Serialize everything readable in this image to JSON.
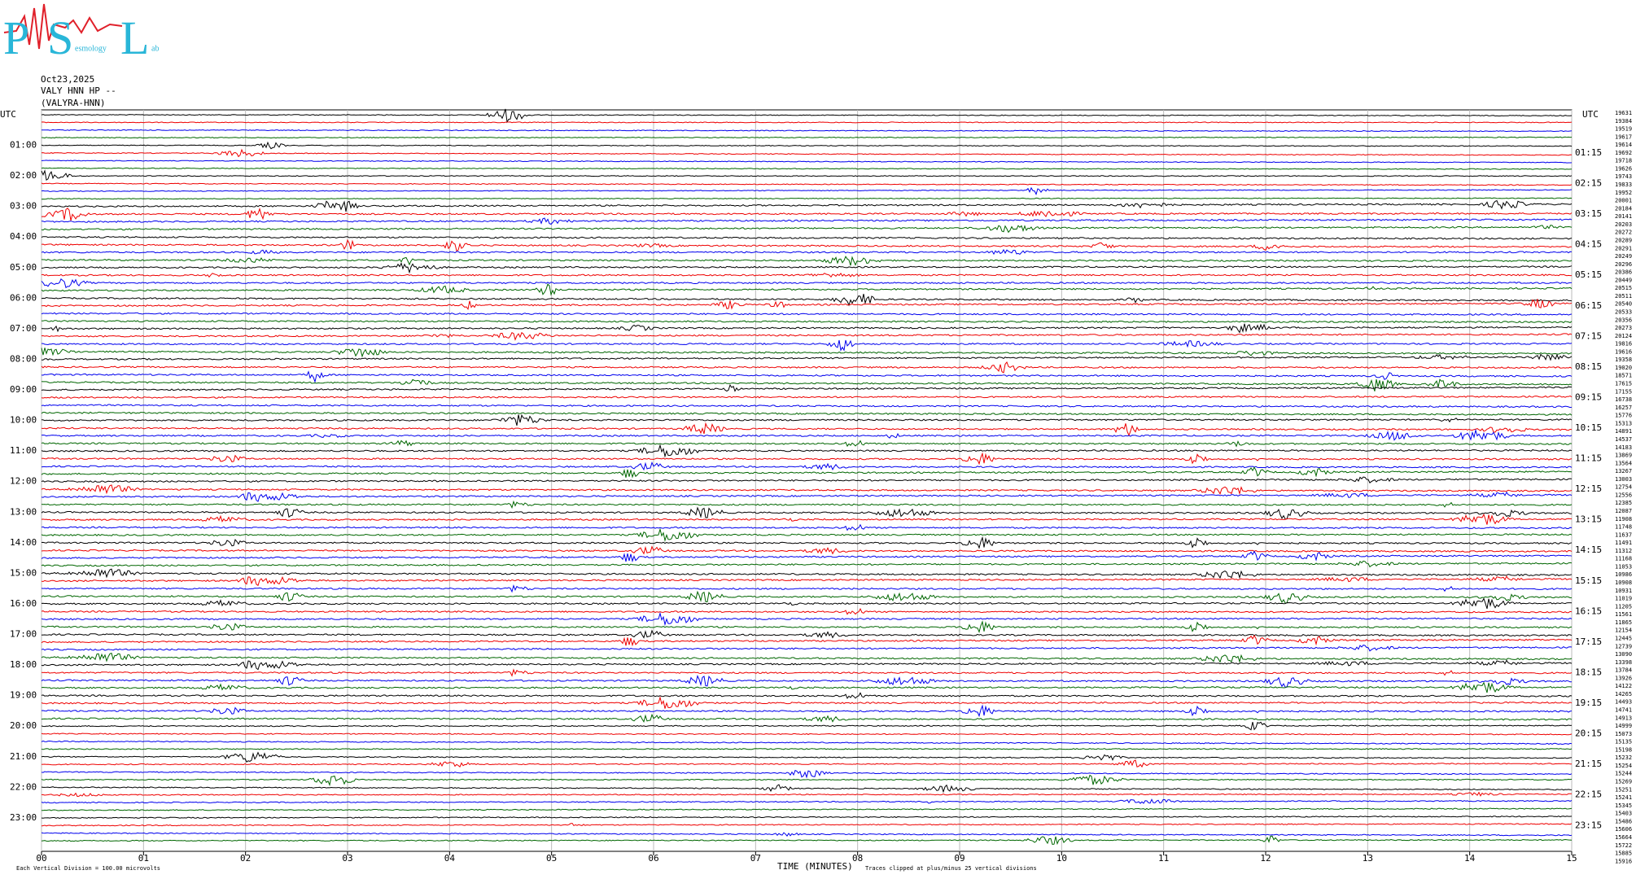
{
  "header": {
    "logo": [
      "P",
      "S",
      "L"
    ],
    "logo_fragments": [
      "esmology",
      "ab"
    ],
    "date": "Oct23,2025",
    "station": "VALY HNN HP --",
    "location": "(VALYRA-HNN)"
  },
  "left_axis": {
    "title": "UTC",
    "labels": [
      "01:00",
      "02:00",
      "03:00",
      "04:00",
      "05:00",
      "06:00",
      "07:00",
      "08:00",
      "09:00",
      "10:00",
      "11:00",
      "12:00",
      "13:00",
      "14:00",
      "15:00",
      "16:00",
      "17:00",
      "18:00",
      "19:00",
      "20:00",
      "21:00",
      "22:00",
      "23:00"
    ]
  },
  "right_axis": {
    "title": "UTC",
    "labels": [
      "01:15",
      "02:15",
      "03:15",
      "04:15",
      "05:15",
      "06:15",
      "07:15",
      "08:15",
      "09:15",
      "10:15",
      "11:15",
      "12:15",
      "13:15",
      "14:15",
      "15:15",
      "16:15",
      "17:15",
      "18:15",
      "19:15",
      "20:15",
      "21:15",
      "22:15",
      "23:15"
    ]
  },
  "trace_counts": [
    19631,
    19384,
    19519,
    19617,
    19614,
    19692,
    19718,
    19626,
    19743,
    19833,
    19952,
    20001,
    20184,
    20141,
    20203,
    20272,
    20289,
    20291,
    20249,
    20296,
    20386,
    20449,
    20515,
    20511,
    20540,
    20533,
    20356,
    20273,
    20124,
    19816,
    19616,
    19358,
    19020,
    18571,
    17615,
    17155,
    16738,
    16257,
    15776,
    15313,
    14891,
    14537,
    14183,
    13869,
    13564,
    13267,
    13003,
    12754,
    12556,
    12385,
    12087,
    11908,
    11748,
    11637,
    11491,
    11312,
    11168,
    11053,
    10986,
    10908,
    10931,
    11019,
    11205,
    11561,
    11865,
    12154,
    12445,
    12739,
    13090,
    13398,
    13784,
    13926,
    14122,
    14265,
    14493,
    14741,
    14913,
    14999,
    15073,
    15135,
    15198,
    15232,
    15254,
    15244,
    15269,
    15251,
    15241,
    15345,
    15403,
    15486,
    15606,
    15664,
    15722,
    15885,
    15916
  ],
  "time_axis": {
    "labels": [
      "00",
      "01",
      "02",
      "03",
      "04",
      "05",
      "06",
      "07",
      "08",
      "09",
      "10",
      "11",
      "12",
      "13",
      "14",
      "15"
    ],
    "title": "TIME (MINUTES)"
  },
  "footer": {
    "scale": "Each Vertical Division =  100.00 microvolts",
    "clip": "Traces clipped at plus/minus 25 vertical divisions"
  }
}
